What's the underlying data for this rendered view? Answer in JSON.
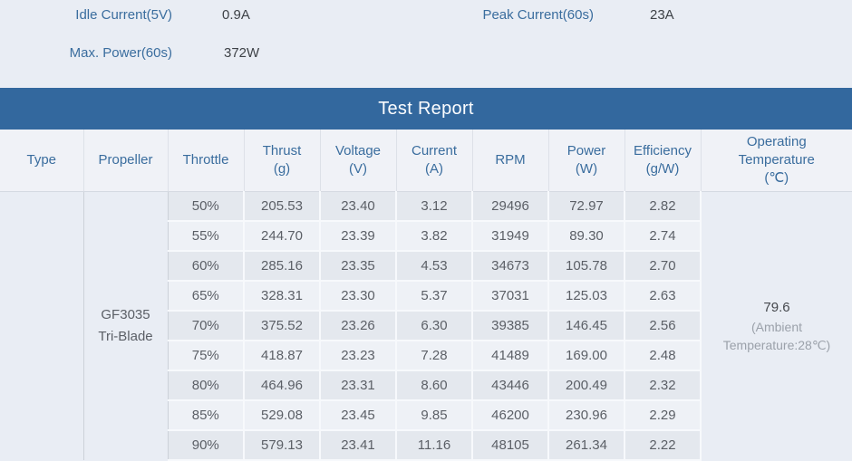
{
  "specs": [
    {
      "label": "Idle Current(5V)",
      "value": "0.9A"
    },
    {
      "label": "Peak Current(60s)",
      "value": "23A"
    },
    {
      "label": "Max. Power(60s)",
      "value": "372W"
    }
  ],
  "report": {
    "title": "Test Report",
    "columns": [
      "Type",
      "Propeller",
      "Throttle",
      "Thrust\n(g)",
      "Voltage\n(V)",
      "Current\n(A)",
      "RPM",
      "Power\n(W)",
      "Efficiency\n(g/W)",
      "Operating\nTemperature\n(℃)"
    ],
    "type_value": "",
    "propeller": "GF3035\nTri-Blade",
    "operating_temperature": {
      "value": "79.6",
      "note": "(Ambient\nTemperature:28℃)"
    },
    "rows": [
      {
        "throttle": "50%",
        "thrust": "205.53",
        "voltage": "23.40",
        "current": "3.12",
        "rpm": "29496",
        "power": "72.97",
        "efficiency": "2.82"
      },
      {
        "throttle": "55%",
        "thrust": "244.70",
        "voltage": "23.39",
        "current": "3.82",
        "rpm": "31949",
        "power": "89.30",
        "efficiency": "2.74"
      },
      {
        "throttle": "60%",
        "thrust": "285.16",
        "voltage": "23.35",
        "current": "4.53",
        "rpm": "34673",
        "power": "105.78",
        "efficiency": "2.70"
      },
      {
        "throttle": "65%",
        "thrust": "328.31",
        "voltage": "23.30",
        "current": "5.37",
        "rpm": "37031",
        "power": "125.03",
        "efficiency": "2.63"
      },
      {
        "throttle": "70%",
        "thrust": "375.52",
        "voltage": "23.26",
        "current": "6.30",
        "rpm": "39385",
        "power": "146.45",
        "efficiency": "2.56"
      },
      {
        "throttle": "75%",
        "thrust": "418.87",
        "voltage": "23.23",
        "current": "7.28",
        "rpm": "41489",
        "power": "169.00",
        "efficiency": "2.48"
      },
      {
        "throttle": "80%",
        "thrust": "464.96",
        "voltage": "23.31",
        "current": "8.60",
        "rpm": "43446",
        "power": "200.49",
        "efficiency": "2.32"
      },
      {
        "throttle": "85%",
        "thrust": "529.08",
        "voltage": "23.45",
        "current": "9.85",
        "rpm": "46200",
        "power": "230.96",
        "efficiency": "2.29"
      },
      {
        "throttle": "90%",
        "thrust": "579.13",
        "voltage": "23.41",
        "current": "11.16",
        "rpm": "48105",
        "power": "261.34",
        "efficiency": "2.22"
      }
    ]
  },
  "colors": {
    "title_bar": "#33689e",
    "header_text": "#3a6d9e",
    "label_blue": "#3a6d9e",
    "page_background": "#e9edf4",
    "row_stripe_dark": "#e4e8ee",
    "row_stripe_light": "#eef1f6"
  }
}
